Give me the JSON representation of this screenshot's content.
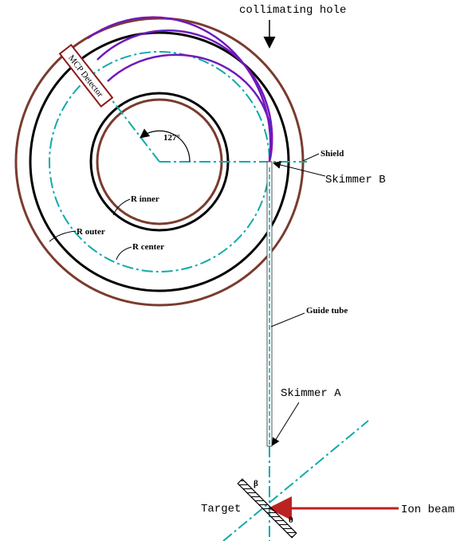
{
  "labels": {
    "collimating_hole": "collimating hole",
    "mcp_detector": "MCP Detector",
    "angle": "127°",
    "shield": "Shield",
    "skimmer_b": "Skimmer B",
    "r_inner": "R inner",
    "r_outer": "R outer",
    "r_center": "R center",
    "guide_tube": "Guide tube",
    "skimmer_a": "Skimmer A",
    "beta": "β",
    "target": "Target",
    "theta": "θ",
    "ion_beam": "Ion beam"
  }
}
